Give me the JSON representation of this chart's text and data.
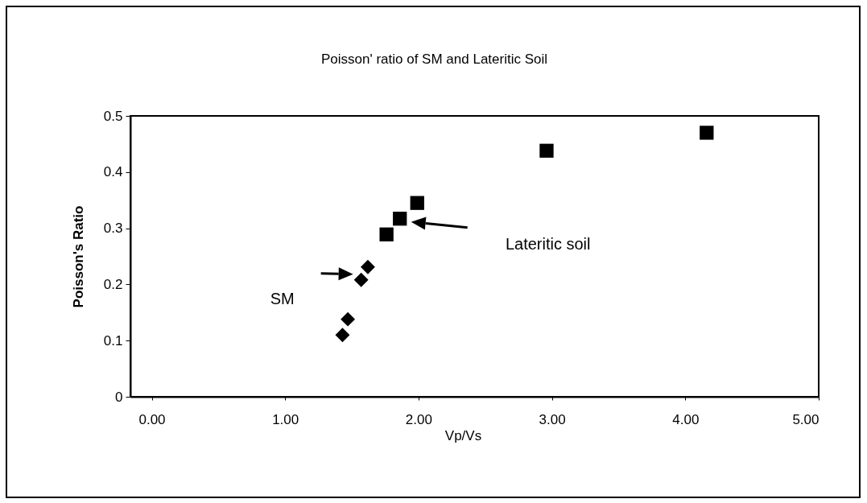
{
  "chart_data": {
    "type": "scatter",
    "title": "Poisson' ratio of SM and Lateritic Soil",
    "xlabel": "Vp/Vs",
    "ylabel": "Poisson's Ratio",
    "xlim": [
      -0.16,
      5
    ],
    "xticks": [
      {
        "value": 0,
        "label": "0.00"
      },
      {
        "value": 1,
        "label": "1.00"
      },
      {
        "value": 2,
        "label": "2.00"
      },
      {
        "value": 3,
        "label": "3.00"
      },
      {
        "value": 4,
        "label": "4.00"
      },
      {
        "value": 5,
        "label": "5.00"
      }
    ],
    "ylim": [
      0,
      0.5
    ],
    "yticks": [
      0,
      0.1,
      0.2,
      0.3,
      0.4,
      0.5
    ],
    "grid": false,
    "series": [
      {
        "color": "#000000",
        "marker": "diamond",
        "x": [
          1.43,
          1.47,
          1.57,
          1.62
        ],
        "values": [
          0.11,
          0.138,
          0.208,
          0.231
        ]
      },
      {
        "color": "#000000",
        "marker": "square",
        "x": [
          1.76,
          1.86,
          1.99,
          2.96,
          4.16
        ],
        "values": [
          0.289,
          0.317,
          0.345,
          0.438,
          0.47
        ]
      }
    ],
    "annotations": [
      "SM",
      "Lateritic soil"
    ]
  }
}
